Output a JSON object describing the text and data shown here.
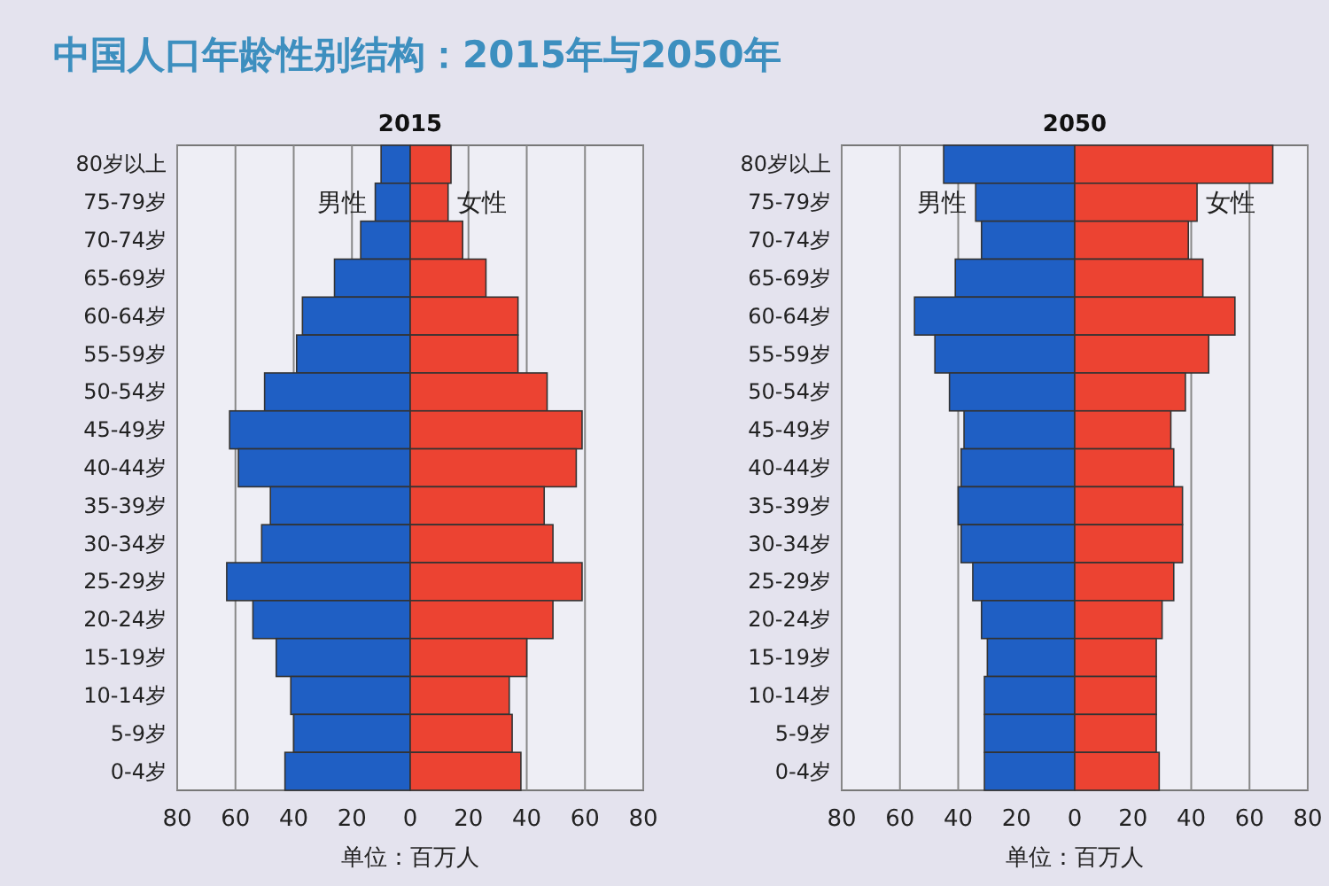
{
  "chart_data": [
    {
      "type": "bar",
      "title": "中国人口年龄性别结构：2015年与2050年",
      "subtitle": "2015",
      "xlabel": "单位：百万人",
      "orientation": "horizontal",
      "stacked": true,
      "grid": "x",
      "categories": [
        "80岁以上",
        "75-79岁",
        "70-74岁",
        "65-69岁",
        "60-64岁",
        "55-59岁",
        "50-54岁",
        "45-49岁",
        "40-44岁",
        "35-39岁",
        "30-34岁",
        "25-29岁",
        "20-24岁",
        "15-19岁",
        "10-14岁",
        "5-9岁",
        "0-4岁"
      ],
      "series": [
        {
          "name": "男性",
          "color": "#1f5fc4",
          "values": [
            -10,
            -12,
            -17,
            -26,
            -37,
            -39,
            -50,
            -62,
            -59,
            -48,
            -51,
            -63,
            -54,
            -46,
            -41,
            -40,
            -43
          ]
        },
        {
          "name": "女性",
          "color": "#ec4332",
          "values": [
            14,
            13,
            18,
            26,
            37,
            37,
            47,
            59,
            57,
            46,
            49,
            59,
            49,
            40,
            34,
            35,
            38
          ]
        }
      ],
      "xlim": [
        -80,
        80
      ],
      "xticks": [
        {
          "value": -80,
          "label": "80"
        },
        {
          "value": -60,
          "label": "60"
        },
        {
          "value": -40,
          "label": "40"
        },
        {
          "value": -20,
          "label": "20"
        },
        0,
        20,
        40,
        60,
        80
      ]
    },
    {
      "type": "bar",
      "subtitle": "2050",
      "xlabel": "单位：百万人",
      "orientation": "horizontal",
      "stacked": true,
      "grid": "x",
      "categories": [
        "80岁以上",
        "75-79岁",
        "70-74岁",
        "65-69岁",
        "60-64岁",
        "55-59岁",
        "50-54岁",
        "45-49岁",
        "40-44岁",
        "35-39岁",
        "30-34岁",
        "25-29岁",
        "20-24岁",
        "15-19岁",
        "10-14岁",
        "5-9岁",
        "0-4岁"
      ],
      "series": [
        {
          "name": "男性",
          "color": "#1f5fc4",
          "values": [
            -45,
            -34,
            -32,
            -41,
            -55,
            -48,
            -43,
            -38,
            -39,
            -40,
            -39,
            -35,
            -32,
            -30,
            -31,
            -31,
            -31
          ]
        },
        {
          "name": "女性",
          "color": "#ec4332",
          "values": [
            68,
            42,
            39,
            44,
            55,
            46,
            38,
            33,
            34,
            37,
            37,
            34,
            30,
            28,
            28,
            28,
            29
          ]
        }
      ],
      "xlim": [
        -80,
        80
      ],
      "xticks": [
        {
          "value": -80,
          "label": "80"
        },
        {
          "value": -60,
          "label": "60"
        },
        {
          "value": -40,
          "label": "40"
        },
        {
          "value": -20,
          "label": "20"
        },
        0,
        20,
        40,
        60,
        80
      ]
    }
  ]
}
